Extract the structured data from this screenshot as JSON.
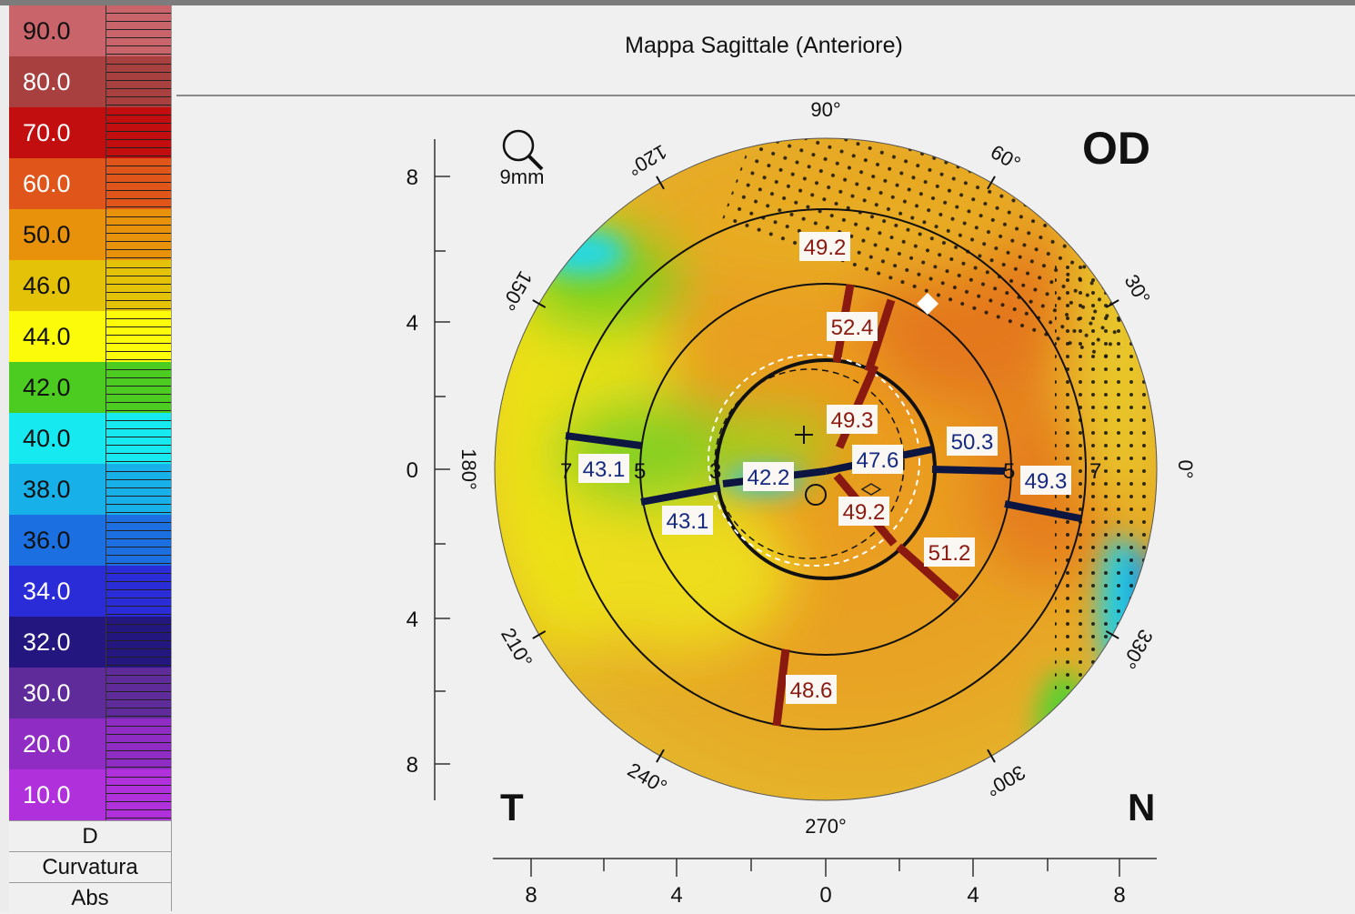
{
  "title": "Mappa Sagittale (Anteriore)",
  "eye": "OD",
  "corner_left": "T",
  "corner_right": "N",
  "zoom": {
    "icon": "magnifier-icon",
    "label": "9mm"
  },
  "legend": {
    "steps": [
      {
        "value": "90.0",
        "color": "#c8646a",
        "text": "#111"
      },
      {
        "value": "80.0",
        "color": "#a84040",
        "text": "#fff"
      },
      {
        "value": "70.0",
        "color": "#c20e0e",
        "text": "#fff"
      },
      {
        "value": "60.0",
        "color": "#e0561a",
        "text": "#fff"
      },
      {
        "value": "50.0",
        "color": "#e8920c",
        "text": "#111"
      },
      {
        "value": "46.0",
        "color": "#e4c208",
        "text": "#111"
      },
      {
        "value": "44.0",
        "color": "#fcfc0a",
        "text": "#111"
      },
      {
        "value": "42.0",
        "color": "#4ccc20",
        "text": "#111"
      },
      {
        "value": "40.0",
        "color": "#16eaf0",
        "text": "#111"
      },
      {
        "value": "38.0",
        "color": "#18b0e8",
        "text": "#111"
      },
      {
        "value": "36.0",
        "color": "#1b6fe0",
        "text": "#111"
      },
      {
        "value": "34.0",
        "color": "#2a2cd8",
        "text": "#fff"
      },
      {
        "value": "32.0",
        "color": "#23167e",
        "text": "#fff"
      },
      {
        "value": "30.0",
        "color": "#5f2a9a",
        "text": "#fff"
      },
      {
        "value": "20.0",
        "color": "#8e2cc4",
        "text": "#fff"
      },
      {
        "value": "10.0",
        "color": "#b030dc",
        "text": "#fff"
      }
    ],
    "unit": "D",
    "mode": "Curvatura",
    "scale": "Abs"
  },
  "angle_labels": [
    "90°",
    "60°",
    "30°",
    "0°",
    "330°",
    "300°",
    "270°",
    "240°",
    "210°",
    "180°",
    "150°",
    "120°"
  ],
  "y_ticks": [
    "8",
    "4",
    "0",
    "4",
    "8"
  ],
  "x_ticks": [
    "8",
    "4",
    "0",
    "4",
    "8"
  ],
  "ring_labels": {
    "left_outer": "7",
    "left_inner": "5",
    "right_inner": "5",
    "right_outer": "7",
    "center_left": "3"
  },
  "keratometry_red": [
    {
      "value": "49.2",
      "angle": 80
    },
    {
      "value": "52.4",
      "angle": 64
    },
    {
      "value": "49.3",
      "angle": 60
    },
    {
      "value": "49.2",
      "angle": 300
    },
    {
      "value": "51.2",
      "angle": 310
    },
    {
      "value": "48.6",
      "angle": 260
    }
  ],
  "keratometry_blue": [
    {
      "value": "43.1",
      "angle": 170
    },
    {
      "value": "42.2",
      "angle": 190
    },
    {
      "value": "43.1",
      "angle": 190
    },
    {
      "value": "47.6",
      "angle": 10
    },
    {
      "value": "50.3",
      "angle": 2
    },
    {
      "value": "49.3",
      "angle": 345
    }
  ]
}
